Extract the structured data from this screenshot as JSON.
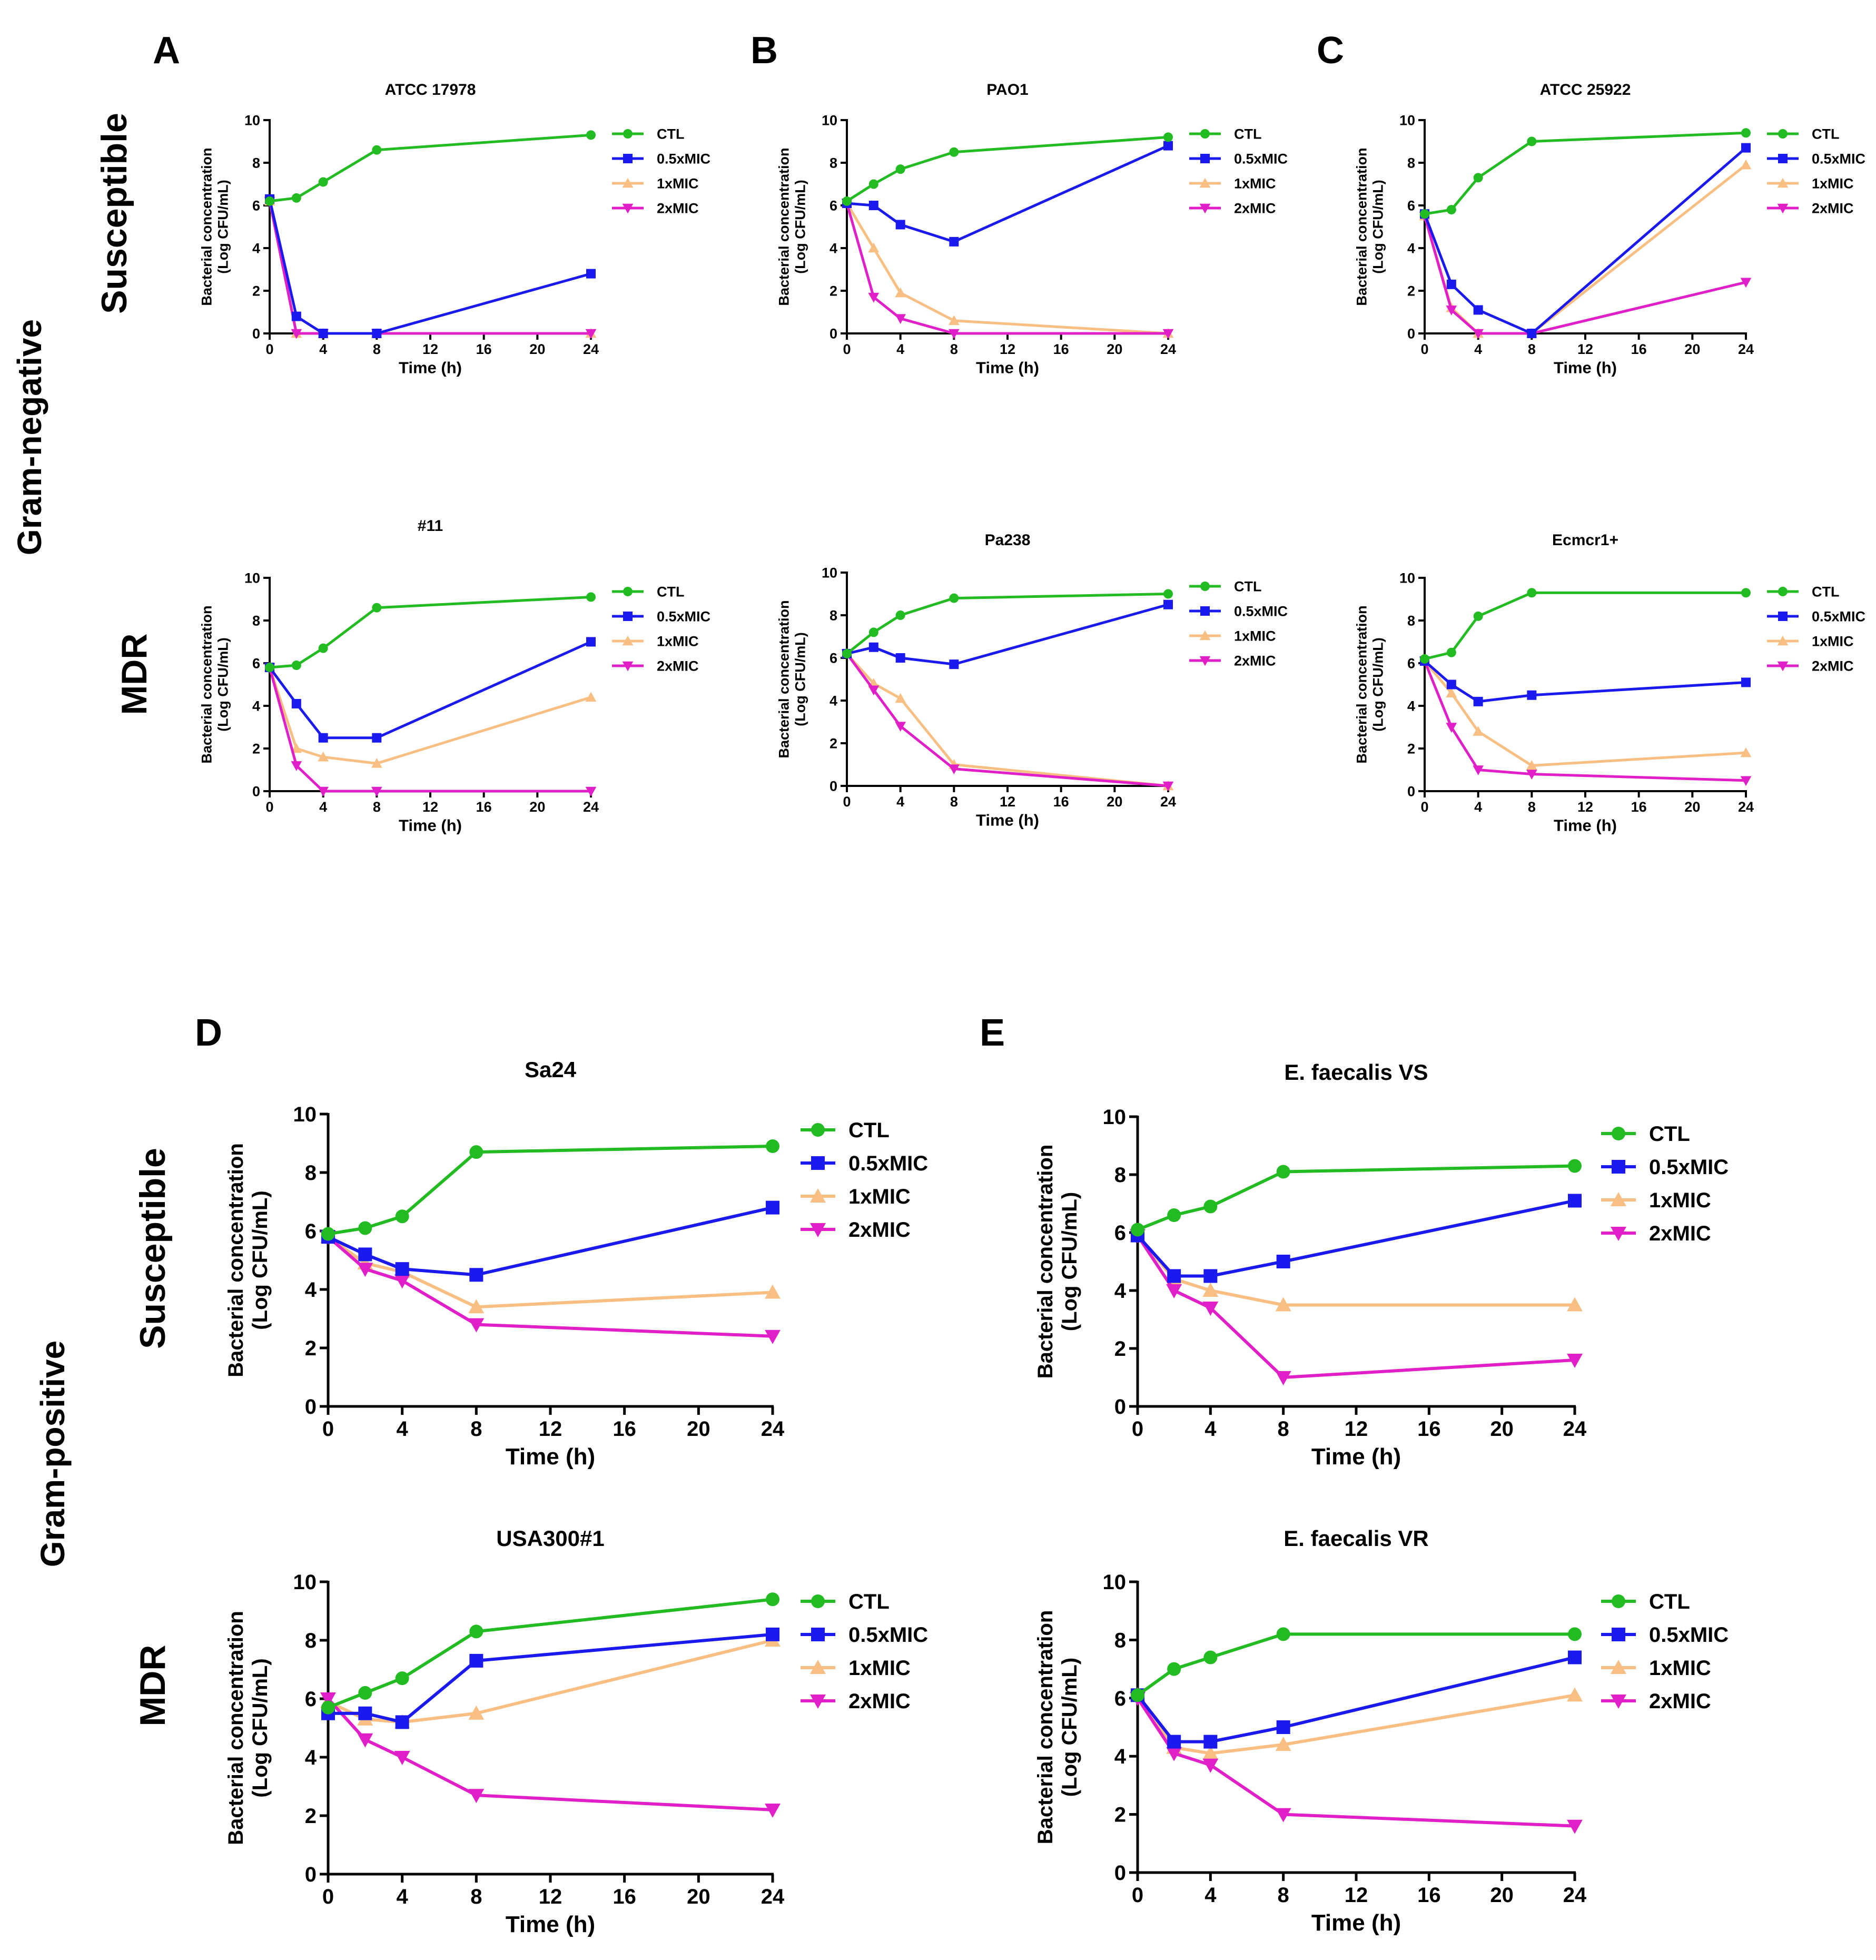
{
  "figure": {
    "row_labels": {
      "gram_negative": "Gram-negative",
      "gram_positive": "Gram-positive",
      "susceptible": "Susceptible",
      "mdr": "MDR"
    },
    "legend_labels": [
      "CTL",
      "0.5xMIC",
      "1xMIC",
      "2xMIC"
    ],
    "series_colors": [
      "#22bb22",
      "#1a1aee",
      "#f9be82",
      "#e01fc8"
    ],
    "xlabel": "Time (h)",
    "ylabel_line1": "Bacterial concentration",
    "ylabel_line2": "(Log CFU/mL)",
    "x_ticks": [
      0,
      4,
      8,
      12,
      16,
      20,
      24
    ],
    "y_ticks": [
      0,
      2,
      4,
      6,
      8,
      10
    ]
  },
  "chart_data": [
    {
      "panel_letter": "A",
      "title": "ATCC 17978",
      "type": "line",
      "x": [
        0,
        2,
        4,
        8,
        24
      ],
      "xlim": [
        0,
        24
      ],
      "ylim": [
        0,
        10
      ],
      "series": [
        {
          "name": "CTL",
          "values": [
            6.2,
            6.35,
            7.1,
            8.6,
            9.3
          ]
        },
        {
          "name": "0.5xMIC",
          "values": [
            6.3,
            0.8,
            0,
            0,
            2.8
          ]
        },
        {
          "name": "1xMIC",
          "values": [
            6.2,
            0,
            0,
            0,
            0
          ]
        },
        {
          "name": "2xMIC",
          "values": [
            6.2,
            0,
            0,
            0,
            0
          ]
        }
      ]
    },
    {
      "panel_letter": "B",
      "title": "PAO1",
      "type": "line",
      "x": [
        0,
        2,
        4,
        8,
        24
      ],
      "xlim": [
        0,
        24
      ],
      "ylim": [
        0,
        10
      ],
      "series": [
        {
          "name": "CTL",
          "values": [
            6.2,
            7.0,
            7.7,
            8.5,
            9.2
          ]
        },
        {
          "name": "0.5xMIC",
          "values": [
            6.1,
            6.0,
            5.1,
            4.3,
            8.8
          ]
        },
        {
          "name": "1xMIC",
          "values": [
            6.1,
            4.0,
            1.9,
            0.6,
            0
          ]
        },
        {
          "name": "2xMIC",
          "values": [
            6.1,
            1.7,
            0.7,
            0,
            0
          ]
        }
      ]
    },
    {
      "panel_letter": "C",
      "title": "ATCC 25922",
      "type": "line",
      "x": [
        0,
        2,
        4,
        8,
        24
      ],
      "xlim": [
        0,
        24
      ],
      "ylim": [
        0,
        10
      ],
      "series": [
        {
          "name": "CTL",
          "values": [
            5.6,
            5.8,
            7.3,
            9.0,
            9.4
          ]
        },
        {
          "name": "0.5xMIC",
          "values": [
            5.6,
            2.3,
            1.1,
            0,
            8.7
          ]
        },
        {
          "name": "1xMIC",
          "values": [
            5.5,
            1.2,
            0,
            0,
            7.9
          ]
        },
        {
          "name": "2xMIC",
          "values": [
            5.5,
            1.1,
            0,
            0,
            2.4
          ]
        }
      ]
    },
    {
      "panel_letter": "",
      "title": "#11",
      "type": "line",
      "x": [
        0,
        2,
        4,
        8,
        24
      ],
      "xlim": [
        0,
        24
      ],
      "ylim": [
        0,
        10
      ],
      "series": [
        {
          "name": "CTL",
          "values": [
            5.8,
            5.9,
            6.7,
            8.6,
            9.1
          ]
        },
        {
          "name": "0.5xMIC",
          "values": [
            5.8,
            4.1,
            2.5,
            2.5,
            7.0
          ]
        },
        {
          "name": "1xMIC",
          "values": [
            5.8,
            2.0,
            1.6,
            1.3,
            4.4
          ]
        },
        {
          "name": "2xMIC",
          "values": [
            5.8,
            1.2,
            0,
            0,
            0
          ]
        }
      ]
    },
    {
      "panel_letter": "",
      "title": "Pa238",
      "type": "line",
      "x": [
        0,
        2,
        4,
        8,
        24
      ],
      "xlim": [
        0,
        24
      ],
      "ylim": [
        0,
        10
      ],
      "series": [
        {
          "name": "CTL",
          "values": [
            6.2,
            7.2,
            8.0,
            8.8,
            9.0
          ]
        },
        {
          "name": "0.5xMIC",
          "values": [
            6.2,
            6.5,
            6.0,
            5.7,
            8.5
          ]
        },
        {
          "name": "1xMIC",
          "values": [
            6.2,
            4.8,
            4.1,
            1.0,
            0
          ]
        },
        {
          "name": "2xMIC",
          "values": [
            6.2,
            4.5,
            2.8,
            0.8,
            0
          ]
        }
      ]
    },
    {
      "panel_letter": "",
      "title": "Ecmcr1+",
      "type": "line",
      "x": [
        0,
        2,
        4,
        8,
        24
      ],
      "xlim": [
        0,
        24
      ],
      "ylim": [
        0,
        10
      ],
      "series": [
        {
          "name": "CTL",
          "values": [
            6.2,
            6.5,
            8.2,
            9.3,
            9.3
          ]
        },
        {
          "name": "0.5xMIC",
          "values": [
            6.1,
            5.0,
            4.2,
            4.5,
            5.1
          ]
        },
        {
          "name": "1xMIC",
          "values": [
            6.1,
            4.6,
            2.8,
            1.2,
            1.8
          ]
        },
        {
          "name": "2xMIC",
          "values": [
            6.1,
            3.0,
            1.0,
            0.8,
            0.5
          ]
        }
      ]
    },
    {
      "panel_letter": "D",
      "title": "Sa24",
      "type": "line",
      "x": [
        0,
        2,
        4,
        8,
        24
      ],
      "xlim": [
        0,
        24
      ],
      "ylim": [
        0,
        10
      ],
      "series": [
        {
          "name": "CTL",
          "values": [
            5.9,
            6.1,
            6.5,
            8.7,
            8.9
          ]
        },
        {
          "name": "0.5xMIC",
          "values": [
            5.8,
            5.2,
            4.7,
            4.5,
            6.8
          ]
        },
        {
          "name": "1xMIC",
          "values": [
            5.8,
            4.9,
            4.6,
            3.4,
            3.9
          ]
        },
        {
          "name": "2xMIC",
          "values": [
            5.8,
            4.7,
            4.3,
            2.8,
            2.4
          ]
        }
      ]
    },
    {
      "panel_letter": "E",
      "title": "E. faecalis VS",
      "type": "line",
      "x": [
        0,
        2,
        4,
        8,
        24
      ],
      "xlim": [
        0,
        24
      ],
      "ylim": [
        0,
        10
      ],
      "series": [
        {
          "name": "CTL",
          "values": [
            6.1,
            6.6,
            6.9,
            8.1,
            8.3
          ]
        },
        {
          "name": "0.5xMIC",
          "values": [
            5.9,
            4.5,
            4.5,
            5.0,
            7.1
          ]
        },
        {
          "name": "1xMIC",
          "values": [
            5.9,
            4.4,
            4.0,
            3.5,
            3.5
          ]
        },
        {
          "name": "2xMIC",
          "values": [
            5.9,
            4.0,
            3.4,
            1.0,
            1.6
          ]
        }
      ]
    },
    {
      "panel_letter": "",
      "title": "USA300#1",
      "type": "line",
      "x": [
        0,
        2,
        4,
        8,
        24
      ],
      "xlim": [
        0,
        24
      ],
      "ylim": [
        0,
        10
      ],
      "series": [
        {
          "name": "CTL",
          "values": [
            5.7,
            6.2,
            6.7,
            8.3,
            9.4
          ]
        },
        {
          "name": "0.5xMIC",
          "values": [
            5.5,
            5.5,
            5.2,
            7.3,
            8.2
          ]
        },
        {
          "name": "1xMIC",
          "values": [
            5.9,
            5.3,
            5.2,
            5.5,
            8.0
          ]
        },
        {
          "name": "2xMIC",
          "values": [
            6.0,
            4.6,
            4.0,
            2.7,
            2.2
          ]
        }
      ]
    },
    {
      "panel_letter": "",
      "title": "E. faecalis VR",
      "type": "line",
      "x": [
        0,
        2,
        4,
        8,
        24
      ],
      "xlim": [
        0,
        24
      ],
      "ylim": [
        0,
        10
      ],
      "series": [
        {
          "name": "CTL",
          "values": [
            6.1,
            7.0,
            7.4,
            8.2,
            8.2
          ]
        },
        {
          "name": "0.5xMIC",
          "values": [
            6.1,
            4.5,
            4.5,
            5.0,
            7.4
          ]
        },
        {
          "name": "1xMIC",
          "values": [
            6.1,
            4.3,
            4.1,
            4.4,
            6.1
          ]
        },
        {
          "name": "2xMIC",
          "values": [
            6.0,
            4.1,
            3.7,
            2.0,
            1.6
          ]
        }
      ]
    }
  ]
}
